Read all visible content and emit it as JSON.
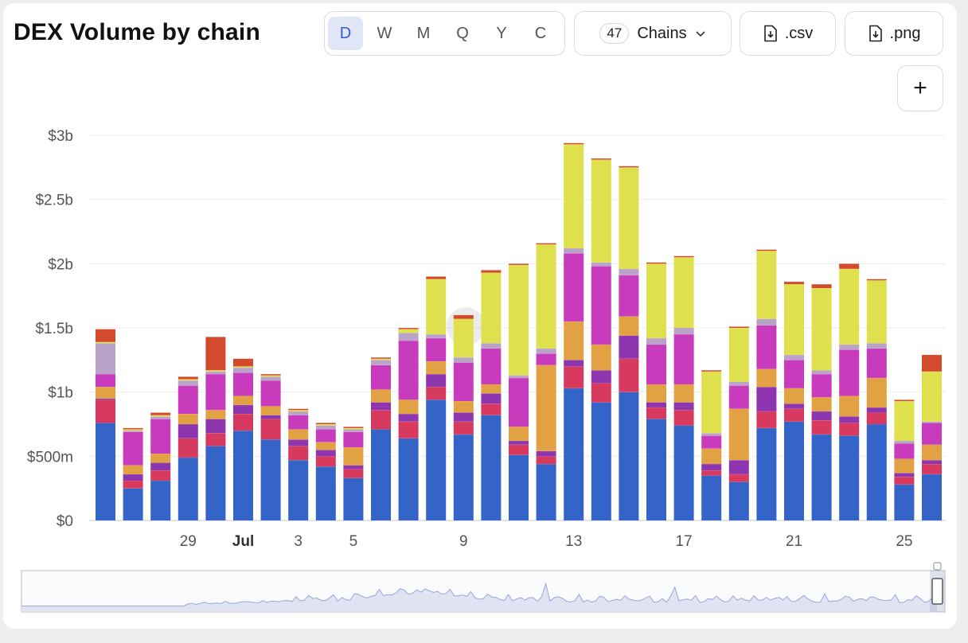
{
  "header": {
    "title": "DEX Volume by chain",
    "periods": [
      "D",
      "W",
      "M",
      "Q",
      "Y",
      "C"
    ],
    "active_period": "D",
    "chains_count": "47",
    "chains_label": "Chains",
    "csv_label": ".csv",
    "png_label": ".png",
    "add_label": "+"
  },
  "colors": {
    "base": "#3564c9",
    "s2": "#d83a5f",
    "s3": "#8e35b0",
    "s4": "#e2a243",
    "s5": "#c93bbd",
    "s6": "#dfe04e",
    "s7": "#d34a2c",
    "grid": "#eeeeee",
    "brush_fill": "#dfe3f2",
    "brush_line": "#9aa6d8"
  },
  "chart_data": {
    "type": "bar",
    "stacked": true,
    "y_ticks": [
      "$0",
      "$500m",
      "$1b",
      "$1.5b",
      "$2b",
      "$2.5b",
      "$3b"
    ],
    "ylim": [
      0,
      3.0
    ],
    "y_unit": "billions USD",
    "x_ticks": [
      {
        "label": "29",
        "bar": 3
      },
      {
        "label": "Jul",
        "bar": 5,
        "bold": true
      },
      {
        "label": "3",
        "bar": 7
      },
      {
        "label": "5",
        "bar": 9
      },
      {
        "label": "9",
        "bar": 13
      },
      {
        "label": "13",
        "bar": 17
      },
      {
        "label": "17",
        "bar": 21
      },
      {
        "label": "21",
        "bar": 25
      },
      {
        "label": "25",
        "bar": 29
      }
    ],
    "bars": [
      [
        0.76,
        0.18,
        0.01,
        0.09,
        0.1,
        0.24,
        0.01,
        0.1
      ],
      [
        0.25,
        0.06,
        0.05,
        0.07,
        0.26,
        0.01,
        0.01,
        0.01
      ],
      [
        0.31,
        0.08,
        0.06,
        0.07,
        0.27,
        0.02,
        0.01,
        0.02
      ],
      [
        0.49,
        0.15,
        0.11,
        0.08,
        0.22,
        0.04,
        0.01,
        0.02
      ],
      [
        0.58,
        0.1,
        0.11,
        0.07,
        0.28,
        0.02,
        0.01,
        0.26
      ],
      [
        0.7,
        0.13,
        0.07,
        0.07,
        0.18,
        0.04,
        0.01,
        0.06
      ],
      [
        0.63,
        0.16,
        0.03,
        0.07,
        0.2,
        0.03,
        0.01,
        0.01
      ],
      [
        0.47,
        0.11,
        0.05,
        0.08,
        0.11,
        0.03,
        0.01,
        0.01
      ],
      [
        0.42,
        0.08,
        0.05,
        0.06,
        0.1,
        0.03,
        0.01,
        0.01
      ],
      [
        0.33,
        0.07,
        0.03,
        0.14,
        0.12,
        0.02,
        0.01,
        0.01
      ],
      [
        0.71,
        0.15,
        0.06,
        0.1,
        0.19,
        0.04,
        0.01,
        0.01
      ],
      [
        0.64,
        0.13,
        0.06,
        0.11,
        0.46,
        0.06,
        0.03,
        0.01
      ],
      [
        0.94,
        0.1,
        0.1,
        0.1,
        0.18,
        0.03,
        0.43,
        0.02
      ],
      [
        0.67,
        0.1,
        0.07,
        0.09,
        0.3,
        0.04,
        0.3,
        0.03
      ],
      [
        0.82,
        0.09,
        0.08,
        0.07,
        0.28,
        0.04,
        0.55,
        0.02
      ],
      [
        0.51,
        0.08,
        0.03,
        0.11,
        0.38,
        0.02,
        0.86,
        0.01
      ],
      [
        0.44,
        0.06,
        0.04,
        0.67,
        0.09,
        0.04,
        0.81,
        0.01
      ],
      [
        1.03,
        0.17,
        0.05,
        0.3,
        0.53,
        0.04,
        0.81,
        0.01
      ],
      [
        0.92,
        0.15,
        0.1,
        0.2,
        0.61,
        0.03,
        0.8,
        0.01
      ],
      [
        1.0,
        0.26,
        0.18,
        0.15,
        0.32,
        0.05,
        0.79,
        0.01
      ],
      [
        0.79,
        0.09,
        0.04,
        0.14,
        0.31,
        0.05,
        0.58,
        0.01
      ],
      [
        0.74,
        0.12,
        0.06,
        0.14,
        0.39,
        0.05,
        0.55,
        0.01
      ],
      [
        0.35,
        0.04,
        0.05,
        0.12,
        0.1,
        0.02,
        0.48,
        0.01
      ],
      [
        0.3,
        0.06,
        0.11,
        0.4,
        0.18,
        0.03,
        0.42,
        0.01
      ],
      [
        0.72,
        0.13,
        0.19,
        0.14,
        0.34,
        0.05,
        0.53,
        0.01
      ],
      [
        0.77,
        0.1,
        0.04,
        0.12,
        0.22,
        0.04,
        0.55,
        0.02
      ],
      [
        0.67,
        0.11,
        0.07,
        0.11,
        0.18,
        0.03,
        0.64,
        0.03
      ],
      [
        0.66,
        0.1,
        0.05,
        0.16,
        0.36,
        0.04,
        0.59,
        0.04
      ],
      [
        0.75,
        0.09,
        0.04,
        0.23,
        0.23,
        0.04,
        0.49,
        0.01
      ],
      [
        0.28,
        0.06,
        0.03,
        0.11,
        0.12,
        0.02,
        0.31,
        0.01
      ],
      [
        0.36,
        0.08,
        0.03,
        0.12,
        0.17,
        0.01,
        0.39,
        0.13
      ]
    ],
    "stack_order_colors": [
      "base",
      "s2",
      "s3",
      "s4",
      "s5",
      "s_misc",
      "s6",
      "s7"
    ],
    "grid": true,
    "brush_visible": true
  }
}
